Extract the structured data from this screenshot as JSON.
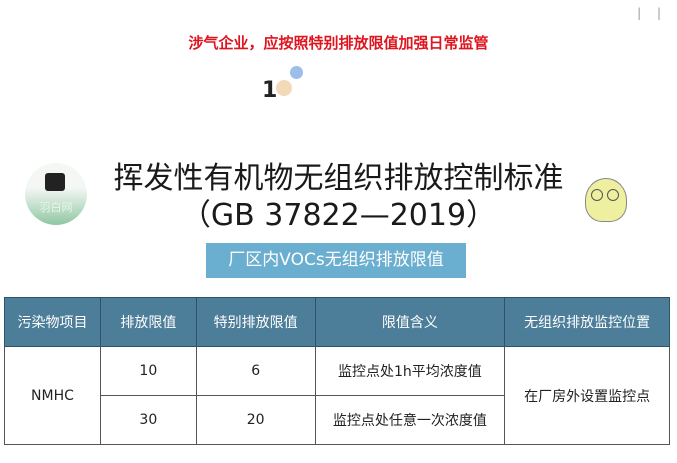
{
  "headline": "涉气企业，应按照特别排放限值加强日常监管",
  "section_number": "1",
  "title_line1": "挥发性有机物无组织排放控制标准",
  "title_line2": "（GB 37822—2019）",
  "logo_text": "羽白网",
  "subtitle": "厂区内VOCs无组织排放限值",
  "table": {
    "headers": [
      "污染物项目",
      "排放限值",
      "特别排放限值",
      "限值含义",
      "无组织排放监控位置"
    ],
    "pollutant": "NMHC",
    "location": "在厂房外设置监控点",
    "rows": [
      {
        "limit": "10",
        "special": "6",
        "meaning": "监控点处1h平均浓度值"
      },
      {
        "limit": "30",
        "special": "20",
        "meaning": "监控点处任意一次浓度值"
      }
    ]
  },
  "colors": {
    "headline": "#e0141e",
    "header_bg": "#4c7d99",
    "subtitle_bg": "#6aaed0"
  }
}
